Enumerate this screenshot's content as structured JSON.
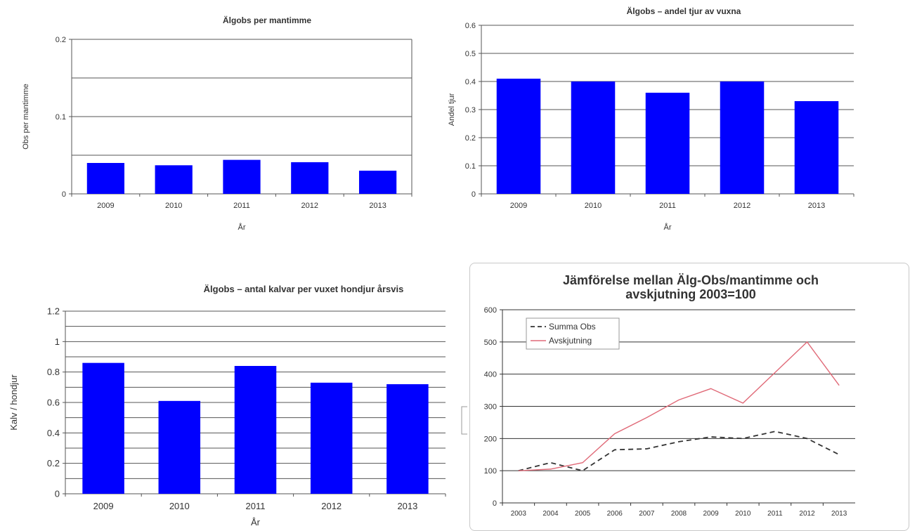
{
  "chart_data": [
    {
      "type": "bar",
      "title": "Älgobs per mantimme",
      "xlabel": "År",
      "ylabel": "Obs per mantimme",
      "categories": [
        "2009",
        "2010",
        "2011",
        "2012",
        "2013"
      ],
      "values": [
        0.04,
        0.037,
        0.044,
        0.041,
        0.03
      ],
      "ylim": [
        0,
        0.2
      ],
      "yticks": [
        "0",
        "0.1",
        "0.2"
      ],
      "gridlines": [
        0.05,
        0.1,
        0.15,
        0.2
      ],
      "bar_color": "#0000ff",
      "legend": "none"
    },
    {
      "type": "bar",
      "title": "Älgobs – andel tjur av vuxna",
      "xlabel": "År",
      "ylabel": "Andel tjur",
      "categories": [
        "2009",
        "2010",
        "2011",
        "2012",
        "2013"
      ],
      "values": [
        0.41,
        0.4,
        0.36,
        0.4,
        0.33
      ],
      "ylim": [
        0,
        0.6
      ],
      "yticks": [
        "0",
        "0.1",
        "0.2",
        "0.3",
        "0.4",
        "0.5",
        "0.6"
      ],
      "gridlines": [
        0.1,
        0.2,
        0.3,
        0.4,
        0.5,
        0.6
      ],
      "bar_color": "#0000ff",
      "legend": "none"
    },
    {
      "type": "bar",
      "title": "Älgobs – antal kalvar per vuxet hondjur årsvis",
      "xlabel": "År",
      "ylabel": "Kalv / hondjur",
      "categories": [
        "2009",
        "2010",
        "2011",
        "2012",
        "2013"
      ],
      "values": [
        0.86,
        0.61,
        0.84,
        0.73,
        0.72
      ],
      "ylim": [
        0,
        1.2
      ],
      "yticks": [
        "0",
        "0.2",
        "0.4",
        "0.6",
        "0.8",
        "1",
        "1.2"
      ],
      "gridlines": [
        0.1,
        0.2,
        0.3,
        0.4,
        0.5,
        0.6,
        0.7,
        0.8,
        0.9,
        1.0,
        1.1,
        1.2
      ],
      "bar_color": "#0000ff",
      "legend": "none"
    },
    {
      "type": "line",
      "title": "Jämförelse mellan Älg-Obs/mantimme och avskjutning  2003=100",
      "xlabel": "",
      "ylabel": "",
      "categories": [
        "2003",
        "2004",
        "2005",
        "2006",
        "2007",
        "2008",
        "2009",
        "2010",
        "2011",
        "2012",
        "2013"
      ],
      "series": [
        {
          "name": "Summa Obs",
          "values": [
            100,
            125,
            100,
            165,
            168,
            190,
            205,
            200,
            222,
            200,
            150
          ],
          "color": "#333333",
          "dash": true
        },
        {
          "name": "Avskjutning",
          "values": [
            100,
            105,
            125,
            215,
            265,
            320,
            355,
            310,
            405,
            500,
            365
          ],
          "color": "#e06a78",
          "dash": false
        }
      ],
      "ylim": [
        0,
        600
      ],
      "yticks": [
        "0",
        "100",
        "200",
        "300",
        "400",
        "500",
        "600"
      ],
      "gridlines": [
        100,
        200,
        300,
        400,
        500,
        600
      ],
      "legend": "top-left"
    }
  ]
}
